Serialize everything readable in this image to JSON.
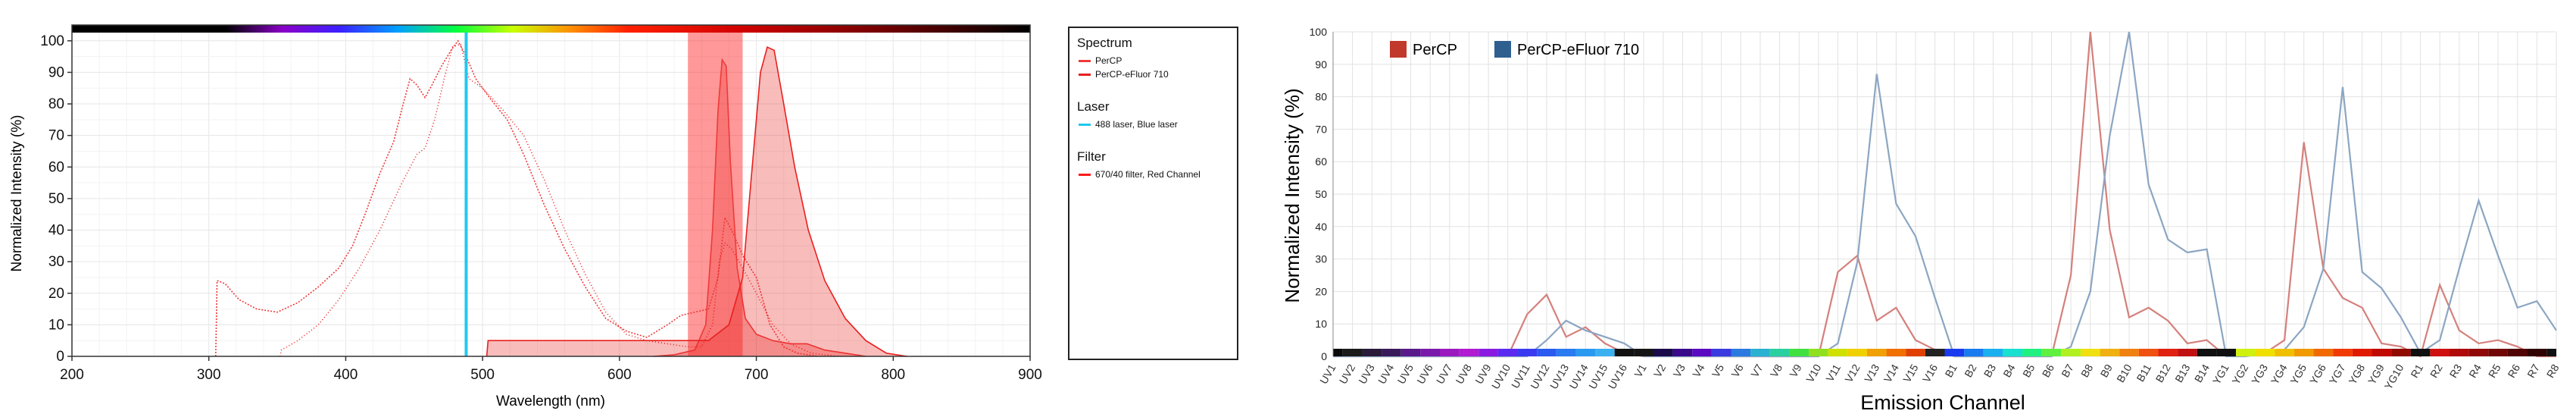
{
  "colors": {
    "percp": "#ee3a3a",
    "percp_efluor710": "#e8201e",
    "laser": "#1fc8f0",
    "filter": "#ff1a1a",
    "percp_bar": "#c0392b",
    "efluor_bar": "#2f5f8f",
    "percp_line": "#d4807c",
    "efluor_line": "#8ba6c2"
  },
  "chart_data": [
    {
      "type": "line",
      "xlabel": "Wavelength (nm)",
      "ylabel": "Normalized Intensity (%)",
      "xlim": [
        200,
        900
      ],
      "ylim": [
        0,
        105
      ],
      "x_ticks": [
        "200",
        "300",
        "400",
        "500",
        "600",
        "700",
        "800",
        "900"
      ],
      "y_ticks": [
        "0",
        "10",
        "20",
        "30",
        "40",
        "50",
        "60",
        "70",
        "80",
        "90",
        "100"
      ],
      "grid": true,
      "legend_placement": "right",
      "legend": {
        "spectrum_title": "Spectrum",
        "spectrum_items": [
          "PerCP",
          "PerCP-eFluor 710"
        ],
        "laser_title": "Laser",
        "laser_items": [
          "488 laser, Blue laser"
        ],
        "filter_title": "Filter",
        "filter_items": [
          "670/40 filter, Red Channel"
        ]
      },
      "laser_nm": 488,
      "filter": {
        "center": 670,
        "width": 40
      },
      "series": [
        {
          "name": "PerCP",
          "kind": "excitation",
          "points": [
            [
              305,
              0
            ],
            [
              306,
              24
            ],
            [
              312,
              23
            ],
            [
              322,
              18
            ],
            [
              335,
              15
            ],
            [
              350,
              14
            ],
            [
              365,
              17
            ],
            [
              380,
              22
            ],
            [
              395,
              28
            ],
            [
              405,
              35
            ],
            [
              415,
              46
            ],
            [
              425,
              58
            ],
            [
              435,
              68
            ],
            [
              442,
              80
            ],
            [
              447,
              88
            ],
            [
              452,
              86
            ],
            [
              458,
              82
            ],
            [
              463,
              86
            ],
            [
              470,
              92
            ],
            [
              477,
              97
            ],
            [
              482,
              100
            ],
            [
              488,
              95
            ],
            [
              495,
              88
            ],
            [
              505,
              82
            ],
            [
              518,
              75
            ],
            [
              530,
              64
            ],
            [
              545,
              48
            ],
            [
              560,
              34
            ],
            [
              575,
              22
            ],
            [
              590,
              12
            ],
            [
              605,
              8
            ],
            [
              620,
              6
            ],
            [
              635,
              10
            ],
            [
              645,
              13
            ],
            [
              655,
              14
            ],
            [
              665,
              15
            ],
            [
              672,
              25
            ],
            [
              677,
              44
            ],
            [
              682,
              40
            ],
            [
              690,
              32
            ],
            [
              700,
              25
            ],
            [
              710,
              10
            ],
            [
              720,
              3
            ],
            [
              730,
              1
            ],
            [
              745,
              0
            ]
          ]
        },
        {
          "name": "PerCP",
          "kind": "emission",
          "points": [
            [
              625,
              0
            ],
            [
              640,
              0.5
            ],
            [
              655,
              2
            ],
            [
              663,
              10
            ],
            [
              668,
              40
            ],
            [
              672,
              78
            ],
            [
              675,
              94
            ],
            [
              678,
              92
            ],
            [
              681,
              62
            ],
            [
              686,
              28
            ],
            [
              692,
              12
            ],
            [
              700,
              7
            ],
            [
              712,
              5
            ],
            [
              725,
              4
            ],
            [
              737,
              4
            ],
            [
              750,
              2
            ],
            [
              765,
              1
            ],
            [
              780,
              0
            ]
          ]
        },
        {
          "name": "PerCP-eFluor 710",
          "kind": "excitation",
          "points": [
            [
              352,
              0
            ],
            [
              353,
              2
            ],
            [
              365,
              5
            ],
            [
              380,
              10
            ],
            [
              395,
              18
            ],
            [
              410,
              28
            ],
            [
              425,
              40
            ],
            [
              440,
              54
            ],
            [
              452,
              64
            ],
            [
              458,
              66
            ],
            [
              465,
              75
            ],
            [
              472,
              88
            ],
            [
              478,
              98
            ],
            [
              484,
              99
            ],
            [
              490,
              88
            ],
            [
              500,
              85
            ],
            [
              515,
              78
            ],
            [
              530,
              70
            ],
            [
              545,
              56
            ],
            [
              560,
              40
            ],
            [
              575,
              26
            ],
            [
              590,
              14
            ],
            [
              605,
              7
            ],
            [
              620,
              5
            ],
            [
              635,
              4
            ],
            [
              650,
              3
            ],
            [
              660,
              3
            ],
            [
              668,
              10
            ],
            [
              673,
              30
            ],
            [
              677,
              36
            ],
            [
              682,
              34
            ],
            [
              690,
              28
            ],
            [
              700,
              20
            ],
            [
              712,
              10
            ],
            [
              725,
              4
            ],
            [
              740,
              1
            ],
            [
              760,
              0
            ]
          ]
        },
        {
          "name": "PerCP-eFluor 710",
          "kind": "emission",
          "points": [
            [
              503,
              0
            ],
            [
              504,
              5
            ],
            [
              520,
              5
            ],
            [
              560,
              5
            ],
            [
              600,
              5
            ],
            [
              640,
              5
            ],
            [
              665,
              5
            ],
            [
              680,
              10
            ],
            [
              690,
              25
            ],
            [
              697,
              60
            ],
            [
              703,
              90
            ],
            [
              708,
              98
            ],
            [
              713,
              97
            ],
            [
              720,
              80
            ],
            [
              728,
              60
            ],
            [
              738,
              40
            ],
            [
              750,
              24
            ],
            [
              765,
              12
            ],
            [
              780,
              5
            ],
            [
              795,
              1
            ],
            [
              810,
              0
            ]
          ]
        }
      ]
    },
    {
      "type": "line",
      "xlabel": "Emission Channel",
      "ylabel": "Normalized Intensity (%)",
      "ylim": [
        0,
        100
      ],
      "y_ticks": [
        "0",
        "10",
        "20",
        "30",
        "40",
        "50",
        "60",
        "70",
        "80",
        "90",
        "100"
      ],
      "grid": true,
      "legend_placement": "top-left",
      "categories": [
        "UV1",
        "UV2",
        "UV3",
        "UV4",
        "UV5",
        "UV6",
        "UV7",
        "UV8",
        "UV9",
        "UV10",
        "UV11",
        "UV12",
        "UV13",
        "UV14",
        "UV15",
        "UV16",
        "V1",
        "V2",
        "V3",
        "V4",
        "V5",
        "V6",
        "V7",
        "V8",
        "V9",
        "V10",
        "V11",
        "V12",
        "V13",
        "V14",
        "V15",
        "V16",
        "B1",
        "B2",
        "B3",
        "B4",
        "B5",
        "B6",
        "B7",
        "B8",
        "B9",
        "B10",
        "B11",
        "B12",
        "B13",
        "B14",
        "YG1",
        "YG2",
        "YG3",
        "YG4",
        "YG5",
        "YG6",
        "YG7",
        "YG8",
        "YG9",
        "YG10",
        "R1",
        "R2",
        "R3",
        "R4",
        "R5",
        "R6",
        "R7",
        "R8"
      ],
      "category_colors": [
        "#0a0a0a",
        "#1a1a1a",
        "#2a1a3a",
        "#3a1a5a",
        "#5a1a8a",
        "#7a1aaa",
        "#9a1ac0",
        "#b01ad0",
        "#8a1ae0",
        "#5a2af0",
        "#3a3af0",
        "#2a5af0",
        "#2a7af0",
        "#2a9af0",
        "#3ab0f0",
        "#111111",
        "#141414",
        "#1a0a4a",
        "#3a0a8a",
        "#5a0ac0",
        "#3a3ae0",
        "#2a7ae0",
        "#2ab0d0",
        "#2ad0a0",
        "#40e040",
        "#90e020",
        "#d0e000",
        "#f0d000",
        "#f0a000",
        "#f07000",
        "#e04000",
        "#222222",
        "#1a3af0",
        "#1a7af0",
        "#1ab0f0",
        "#1ae0d0",
        "#20f080",
        "#60f040",
        "#b0f020",
        "#f0e010",
        "#f0b010",
        "#f08010",
        "#f05010",
        "#e02010",
        "#c01010",
        "#101010",
        "#101010",
        "#d0f010",
        "#f0e000",
        "#f0c000",
        "#f09a00",
        "#f06a00",
        "#f03a00",
        "#e01a00",
        "#c00a00",
        "#900a00",
        "#101010",
        "#d01010",
        "#b00a0a",
        "#900808",
        "#700606",
        "#500404",
        "#300202",
        "#101010"
      ],
      "series": [
        {
          "name": "PerCP",
          "values": [
            0,
            0,
            0,
            0,
            0,
            0,
            0,
            0,
            0,
            0,
            13,
            19,
            6,
            9,
            4,
            1,
            0,
            0,
            0,
            0,
            0,
            0,
            0,
            0,
            0,
            0,
            26,
            31,
            11,
            15,
            5,
            2,
            0,
            0,
            0,
            0,
            0,
            0,
            25,
            100,
            39,
            12,
            15,
            11,
            4,
            5,
            0,
            1,
            1,
            5,
            66,
            27,
            18,
            15,
            4,
            3,
            0,
            22,
            8,
            4,
            5,
            3,
            0,
            0
          ]
        },
        {
          "name": "PerCP-eFluor 710",
          "values": [
            0,
            0,
            0,
            0,
            0,
            0,
            0,
            0,
            0,
            0,
            0,
            5,
            11,
            8,
            6,
            4,
            0,
            0,
            0,
            0,
            0,
            0,
            0,
            0,
            0,
            0,
            4,
            29,
            87,
            47,
            37,
            18,
            0,
            0,
            0,
            0,
            0,
            0,
            3,
            20,
            68,
            100,
            53,
            36,
            32,
            33,
            0,
            0,
            1,
            2,
            9,
            27,
            83,
            26,
            21,
            12,
            1,
            5,
            27,
            48,
            31,
            15,
            17,
            8
          ]
        }
      ]
    }
  ]
}
